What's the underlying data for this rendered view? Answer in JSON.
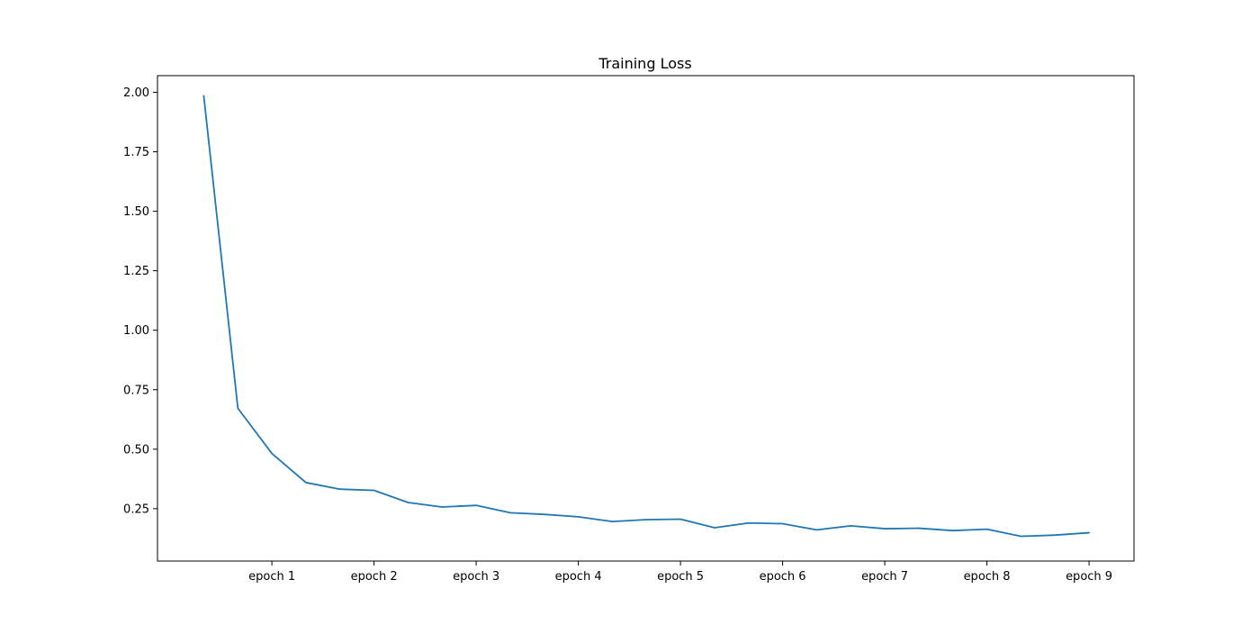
{
  "chart_data": {
    "type": "line",
    "title": "Training Loss",
    "xlabel": "",
    "ylabel": "",
    "x": [
      0.333,
      0.667,
      1.0,
      1.333,
      1.667,
      2.0,
      2.333,
      2.667,
      3.0,
      3.333,
      3.667,
      4.0,
      4.333,
      4.667,
      5.0,
      5.333,
      5.667,
      6.0,
      6.333,
      6.667,
      7.0,
      7.333,
      7.667,
      8.0,
      8.333,
      8.667,
      9.0
    ],
    "x_ticks": [
      1,
      2,
      3,
      4,
      5,
      6,
      7,
      8,
      9
    ],
    "x_tick_labels": [
      "epoch 1",
      "epoch 2",
      "epoch 3",
      "epoch 4",
      "epoch 5",
      "epoch 6",
      "epoch 7",
      "epoch 8",
      "epoch 9"
    ],
    "xlim": [
      -0.12,
      9.44
    ],
    "ylim": [
      0.03,
      2.07
    ],
    "y_ticks": [
      0.25,
      0.5,
      0.75,
      1.0,
      1.25,
      1.5,
      1.75,
      2.0
    ],
    "y_tick_labels": [
      "0.25",
      "0.50",
      "0.75",
      "1.00",
      "1.25",
      "1.50",
      "1.75",
      "2.00"
    ],
    "grid": false,
    "series": [
      {
        "name": "",
        "color": "#1f77b4",
        "values": [
          1.985,
          0.672,
          0.482,
          0.36,
          0.332,
          0.327,
          0.276,
          0.257,
          0.264,
          0.233,
          0.226,
          0.216,
          0.196,
          0.204,
          0.206,
          0.17,
          0.19,
          0.187,
          0.161,
          0.178,
          0.166,
          0.168,
          0.158,
          0.164,
          0.134,
          0.139,
          0.149
        ]
      }
    ]
  }
}
